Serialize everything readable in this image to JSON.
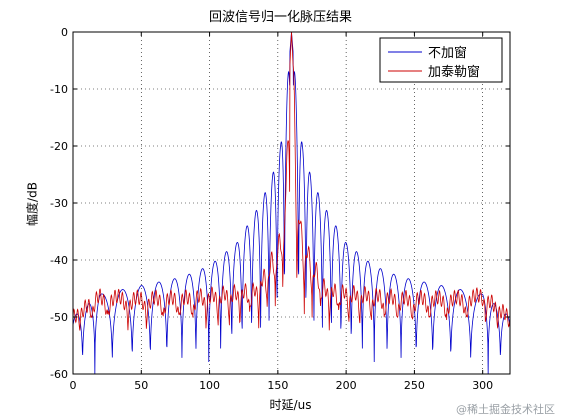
{
  "chart_data": {
    "type": "line",
    "title": "回波信号归一化脉压结果",
    "xlabel": "时延/us",
    "ylabel": "幅度/dB",
    "xlim": [
      0,
      320
    ],
    "ylim": [
      -60,
      0
    ],
    "xticks": [
      0,
      50,
      100,
      150,
      200,
      250,
      300
    ],
    "yticks": [
      0,
      -10,
      -20,
      -30,
      -40,
      -50,
      -60
    ],
    "grid": true,
    "legend_position": "top-right",
    "series": [
      {
        "name": "不加窗",
        "color": "#0000cc",
        "peak_x": 160,
        "envelope": [
          [
            0,
            -50
          ],
          [
            20,
            -46
          ],
          [
            40,
            -45
          ],
          [
            60,
            -44
          ],
          [
            80,
            -43
          ],
          [
            100,
            -41
          ],
          [
            120,
            -37
          ],
          [
            135,
            -31
          ],
          [
            145,
            -26
          ],
          [
            152,
            -20
          ],
          [
            156,
            -12
          ],
          [
            158,
            -6
          ],
          [
            160,
            0
          ],
          [
            162,
            -6
          ],
          [
            164,
            -12
          ],
          [
            168,
            -20
          ],
          [
            175,
            -26
          ],
          [
            185,
            -31
          ],
          [
            200,
            -37
          ],
          [
            220,
            -41
          ],
          [
            240,
            -43
          ],
          [
            260,
            -44
          ],
          [
            280,
            -45
          ],
          [
            300,
            -46
          ],
          [
            320,
            -50
          ]
        ],
        "null_floor": -60
      },
      {
        "name": "加泰勒窗",
        "color": "#cc0000",
        "peak_x": 160,
        "envelope": [
          [
            0,
            -50
          ],
          [
            20,
            -46
          ],
          [
            40,
            -46.5
          ],
          [
            60,
            -46.5
          ],
          [
            80,
            -46.5
          ],
          [
            100,
            -46
          ],
          [
            120,
            -45.5
          ],
          [
            135,
            -45
          ],
          [
            145,
            -40
          ],
          [
            152,
            -36
          ],
          [
            156,
            -28
          ],
          [
            158,
            -10
          ],
          [
            160,
            0
          ],
          [
            162,
            -10
          ],
          [
            164,
            -28
          ],
          [
            168,
            -36
          ],
          [
            175,
            -40
          ],
          [
            185,
            -45
          ],
          [
            200,
            -45.5
          ],
          [
            220,
            -46
          ],
          [
            240,
            -46.5
          ],
          [
            260,
            -46.5
          ],
          [
            280,
            -46.5
          ],
          [
            300,
            -46
          ],
          [
            320,
            -50
          ]
        ],
        "null_floor": -52
      }
    ]
  },
  "watermark": "@稀土掘金技术社区"
}
